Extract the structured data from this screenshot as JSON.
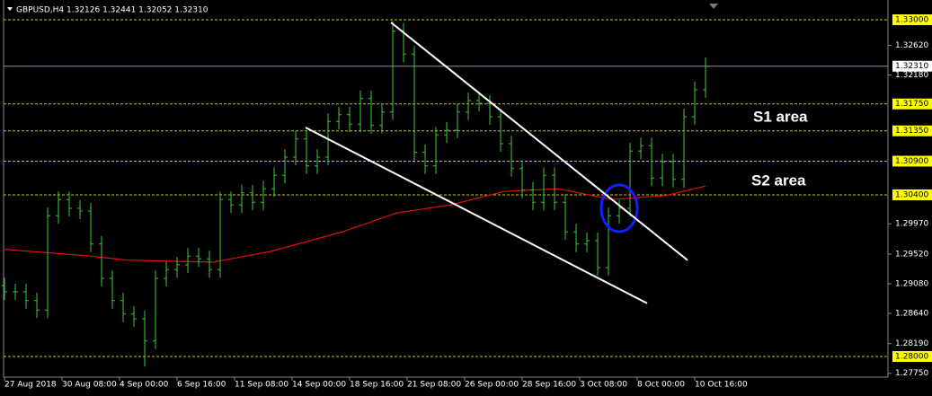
{
  "chart_data": {
    "type": "ohlc",
    "title": "GBPUSD,H4  1.32126 1.32441 1.32052 1.32310",
    "xlim": [
      -1.25,
      245.75
    ],
    "ylim": [
      1.27693,
      1.33293
    ],
    "xticks": [
      {
        "value": 0,
        "label": "27 Aug 2018"
      },
      {
        "value": 16,
        "label": "30 Aug 08:00"
      },
      {
        "value": 32,
        "label": "4 Sep 00:00"
      },
      {
        "value": 48,
        "label": "6 Sep 16:00"
      },
      {
        "value": 64,
        "label": "11 Sep 08:00"
      },
      {
        "value": 80,
        "label": "14 Sep 00:00"
      },
      {
        "value": 96,
        "label": "18 Sep 16:00"
      },
      {
        "value": 112,
        "label": "21 Sep 08:00"
      },
      {
        "value": 128,
        "label": "26 Sep 00:00"
      },
      {
        "value": 144,
        "label": "28 Sep 16:00"
      },
      {
        "value": 160,
        "label": "3 Oct 08:00"
      },
      {
        "value": 176,
        "label": "8 Oct 00:00"
      },
      {
        "value": 192,
        "label": "10 Oct 16:00"
      }
    ],
    "yticks": [
      {
        "value": 1.3262,
        "label": "1.32620"
      },
      {
        "value": 1.3218,
        "label": "1.32180"
      },
      {
        "value": 1.2997,
        "label": "1.29970"
      },
      {
        "value": 1.2952,
        "label": "1.29520"
      },
      {
        "value": 1.2908,
        "label": "1.29080"
      },
      {
        "value": 1.2864,
        "label": "1.28640"
      },
      {
        "value": 1.2819,
        "label": "1.28190"
      },
      {
        "value": 1.2775,
        "label": "1.27750"
      }
    ],
    "levels": {
      "color": "#c8c800",
      "ticks": [
        {
          "value": 1.33,
          "label": "1.33000"
        },
        {
          "value": 1.3175,
          "label": "1.31750"
        },
        {
          "value": 1.3135,
          "label": "1.31350"
        },
        {
          "value": 1.309,
          "label": "1.30900"
        },
        {
          "value": 1.304,
          "label": "1.30400"
        },
        {
          "value": 1.28,
          "label": "1.28000"
        }
      ]
    },
    "current_price": {
      "value": 1.3231,
      "label": "1.32310"
    },
    "color": "#3cc83c",
    "x": [
      0,
      3,
      6,
      9,
      12,
      15,
      18,
      21,
      24,
      27,
      30,
      33,
      36,
      39,
      42,
      45,
      48,
      51,
      54,
      57,
      60,
      63,
      66,
      69,
      72,
      75,
      78,
      81,
      84,
      87,
      90,
      93,
      96,
      99,
      102,
      105,
      108,
      111,
      114,
      117,
      120,
      123,
      126,
      129,
      132,
      135,
      138,
      141,
      144,
      147,
      150,
      153,
      156,
      159,
      162,
      165,
      168,
      171,
      174,
      177,
      180,
      183,
      186,
      189,
      192,
      195
    ],
    "open": [
      1.2905,
      1.2896,
      1.2896,
      1.2883,
      1.2869,
      1.3009,
      1.3033,
      1.302,
      1.3016,
      1.2967,
      1.2916,
      1.2883,
      1.2863,
      1.2856,
      1.2823,
      1.2916,
      1.2929,
      1.2936,
      1.2949,
      1.2945,
      1.2929,
      1.3033,
      1.3025,
      1.3043,
      1.3029,
      1.3049,
      1.3069,
      1.3096,
      1.3123,
      1.3083,
      1.3096,
      1.3149,
      1.3159,
      1.3145,
      1.3183,
      1.3143,
      1.3163,
      1.3283,
      1.3249,
      1.3103,
      1.3083,
      1.3129,
      1.3136,
      1.3163,
      1.318,
      1.3176,
      1.3156,
      1.3116,
      1.3079,
      1.3047,
      1.3029,
      1.3069,
      1.3029,
      1.2985,
      1.2967,
      1.2972,
      1.2932,
      1.3009,
      1.302,
      1.3105,
      1.3113,
      1.3065,
      1.3089,
      1.3063,
      1.3156,
      1.3196
    ],
    "high": [
      1.2917,
      1.2908,
      1.2908,
      1.2895,
      1.3021,
      1.3045,
      1.3045,
      1.3032,
      1.3028,
      1.2979,
      1.2928,
      1.2895,
      1.2875,
      1.2868,
      1.2928,
      1.2941,
      1.2948,
      1.2961,
      1.2961,
      1.2957,
      1.3045,
      1.3045,
      1.3055,
      1.3055,
      1.3061,
      1.3081,
      1.3108,
      1.3135,
      1.3135,
      1.3108,
      1.3161,
      1.3171,
      1.3171,
      1.3195,
      1.3195,
      1.3175,
      1.3298,
      1.3295,
      1.3261,
      1.3115,
      1.3141,
      1.3148,
      1.3175,
      1.3192,
      1.3192,
      1.3188,
      1.3168,
      1.3128,
      1.3091,
      1.3059,
      1.3081,
      1.3081,
      1.3041,
      1.2997,
      1.2984,
      1.2984,
      1.3021,
      1.3032,
      1.3117,
      1.3125,
      1.3125,
      1.3101,
      1.3101,
      1.3168,
      1.3208,
      1.3244
    ],
    "low": [
      1.2884,
      1.2884,
      1.2871,
      1.2857,
      1.2857,
      1.2997,
      1.3008,
      1.3004,
      1.2955,
      1.2904,
      1.2871,
      1.2851,
      1.2844,
      1.2785,
      1.2811,
      1.2904,
      1.2917,
      1.2924,
      1.2933,
      1.2917,
      1.2917,
      1.3013,
      1.3013,
      1.3017,
      1.3017,
      1.3037,
      1.3057,
      1.3084,
      1.3071,
      1.3071,
      1.3084,
      1.3137,
      1.3133,
      1.3133,
      1.3131,
      1.3131,
      1.3151,
      1.3237,
      1.3091,
      1.3071,
      1.3071,
      1.3117,
      1.3124,
      1.3151,
      1.3164,
      1.3144,
      1.3104,
      1.3067,
      1.3035,
      1.3017,
      1.3017,
      1.3017,
      1.2973,
      1.2955,
      1.2955,
      1.292,
      1.292,
      1.2997,
      1.3008,
      1.3093,
      1.3053,
      1.3053,
      1.3051,
      1.3051,
      1.3144,
      1.3184
    ],
    "close": [
      1.2896,
      1.2896,
      1.2883,
      1.2869,
      1.3009,
      1.3033,
      1.302,
      1.3016,
      1.2967,
      1.2916,
      1.2883,
      1.2863,
      1.2856,
      1.2823,
      1.2916,
      1.2929,
      1.2936,
      1.2949,
      1.2945,
      1.2929,
      1.3033,
      1.3025,
      1.3043,
      1.3029,
      1.3049,
      1.3069,
      1.3096,
      1.3123,
      1.3083,
      1.3096,
      1.3149,
      1.3159,
      1.3145,
      1.3183,
      1.3143,
      1.3163,
      1.3283,
      1.3249,
      1.3103,
      1.3083,
      1.3129,
      1.3136,
      1.3163,
      1.318,
      1.3176,
      1.3156,
      1.3116,
      1.3079,
      1.3047,
      1.3029,
      1.3069,
      1.3029,
      1.2985,
      1.2967,
      1.2972,
      1.2932,
      1.3009,
      1.302,
      1.3105,
      1.3113,
      1.3065,
      1.3089,
      1.3063,
      1.3156,
      1.3196,
      1.3231
    ],
    "moving_average": {
      "color": "#e01010",
      "x": [
        0,
        24,
        34,
        58,
        74,
        94,
        109,
        124,
        139,
        154,
        169,
        184,
        195
      ],
      "values": [
        1.2959,
        1.2949,
        1.2943,
        1.294,
        1.2956,
        1.2985,
        1.3013,
        1.3025,
        1.3045,
        1.3049,
        1.3033,
        1.3039,
        1.3053
      ]
    },
    "trendlines": [
      {
        "color": "#ffffff",
        "x": [
          107.5,
          190
        ],
        "values": [
          1.3296,
          1.2943
        ]
      },
      {
        "color": "#ffffff",
        "x": [
          83.75,
          178.75
        ],
        "values": [
          1.314,
          1.2879
        ]
      }
    ],
    "annotations": [
      "S1 area",
      "S2 area"
    ]
  }
}
